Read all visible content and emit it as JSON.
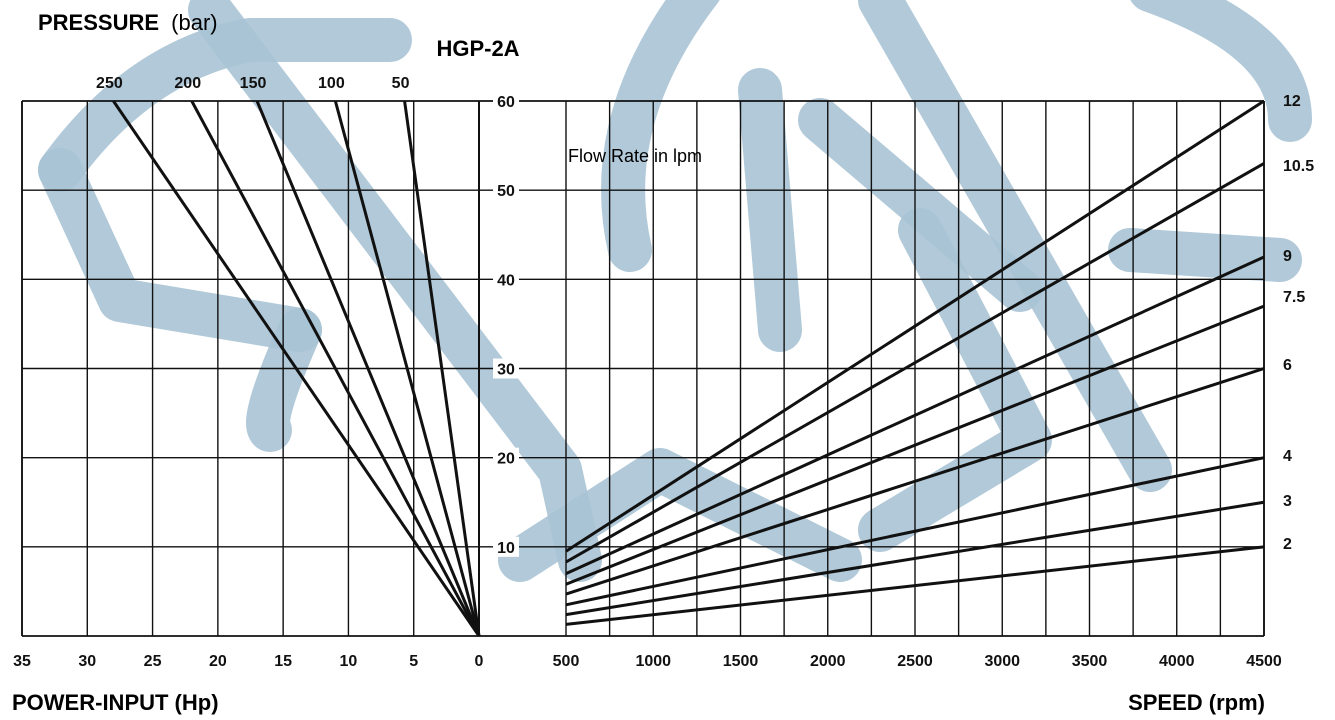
{
  "header": {
    "pressure_label_bold": "PRESSURE",
    "pressure_label_unit": "(bar)",
    "model": "HGP-2A"
  },
  "footer": {
    "power_label": "POWER-INPUT (Hp)",
    "speed_label": "SPEED (rpm)"
  },
  "annotation": "Flow Rate in  lpm",
  "colors": {
    "watermark": "#a9c3d4",
    "lines": "#111111",
    "grid": "#111111"
  },
  "chart_data": [
    {
      "type": "line",
      "xlabel": "POWER-INPUT (Hp)",
      "ylabel": "",
      "title": "",
      "x_reversed": true,
      "xlim": [
        0,
        35
      ],
      "ylim": [
        0,
        60
      ],
      "x_ticks": [
        "35",
        "30",
        "25",
        "20",
        "15",
        "10",
        "5",
        "0"
      ],
      "top_label": "PRESSURE (bar)",
      "series": [
        {
          "name": "250",
          "x": [
            0,
            28
          ],
          "values": [
            0,
            60
          ]
        },
        {
          "name": "200",
          "x": [
            0,
            22
          ],
          "values": [
            0,
            60
          ]
        },
        {
          "name": "150",
          "x": [
            0,
            17
          ],
          "values": [
            0,
            60
          ]
        },
        {
          "name": "100",
          "x": [
            0,
            11
          ],
          "values": [
            0,
            60
          ]
        },
        {
          "name": "50",
          "x": [
            0,
            5.7
          ],
          "values": [
            0,
            60
          ]
        }
      ]
    },
    {
      "type": "line",
      "title": "HGP-2A",
      "xlabel": "SPEED (rpm)",
      "ylabel": "",
      "xlim": [
        500,
        4500
      ],
      "ylim": [
        0,
        60
      ],
      "x_ticks": [
        "500",
        "1000",
        "1500",
        "2000",
        "2500",
        "3000",
        "3500",
        "4000",
        "4500"
      ],
      "y_ticks": [
        "10",
        "20",
        "30",
        "40",
        "50",
        "60"
      ],
      "annotation": "Flow Rate in  lpm",
      "series": [
        {
          "name": "12",
          "x": [
            500,
            4500
          ],
          "values": [
            9.5,
            60
          ]
        },
        {
          "name": "10.5",
          "x": [
            500,
            4500
          ],
          "values": [
            8.3,
            53
          ]
        },
        {
          "name": "9",
          "x": [
            500,
            4500
          ],
          "values": [
            7.0,
            42.5
          ]
        },
        {
          "name": "7.5",
          "x": [
            500,
            4500
          ],
          "values": [
            5.8,
            37
          ]
        },
        {
          "name": "6",
          "x": [
            500,
            4500
          ],
          "values": [
            4.7,
            30
          ]
        },
        {
          "name": "4",
          "x": [
            500,
            4500
          ],
          "values": [
            3.5,
            20
          ]
        },
        {
          "name": "3",
          "x": [
            500,
            4500
          ],
          "values": [
            2.4,
            15
          ]
        },
        {
          "name": "2",
          "x": [
            500,
            4500
          ],
          "values": [
            1.3,
            10
          ]
        }
      ]
    }
  ]
}
